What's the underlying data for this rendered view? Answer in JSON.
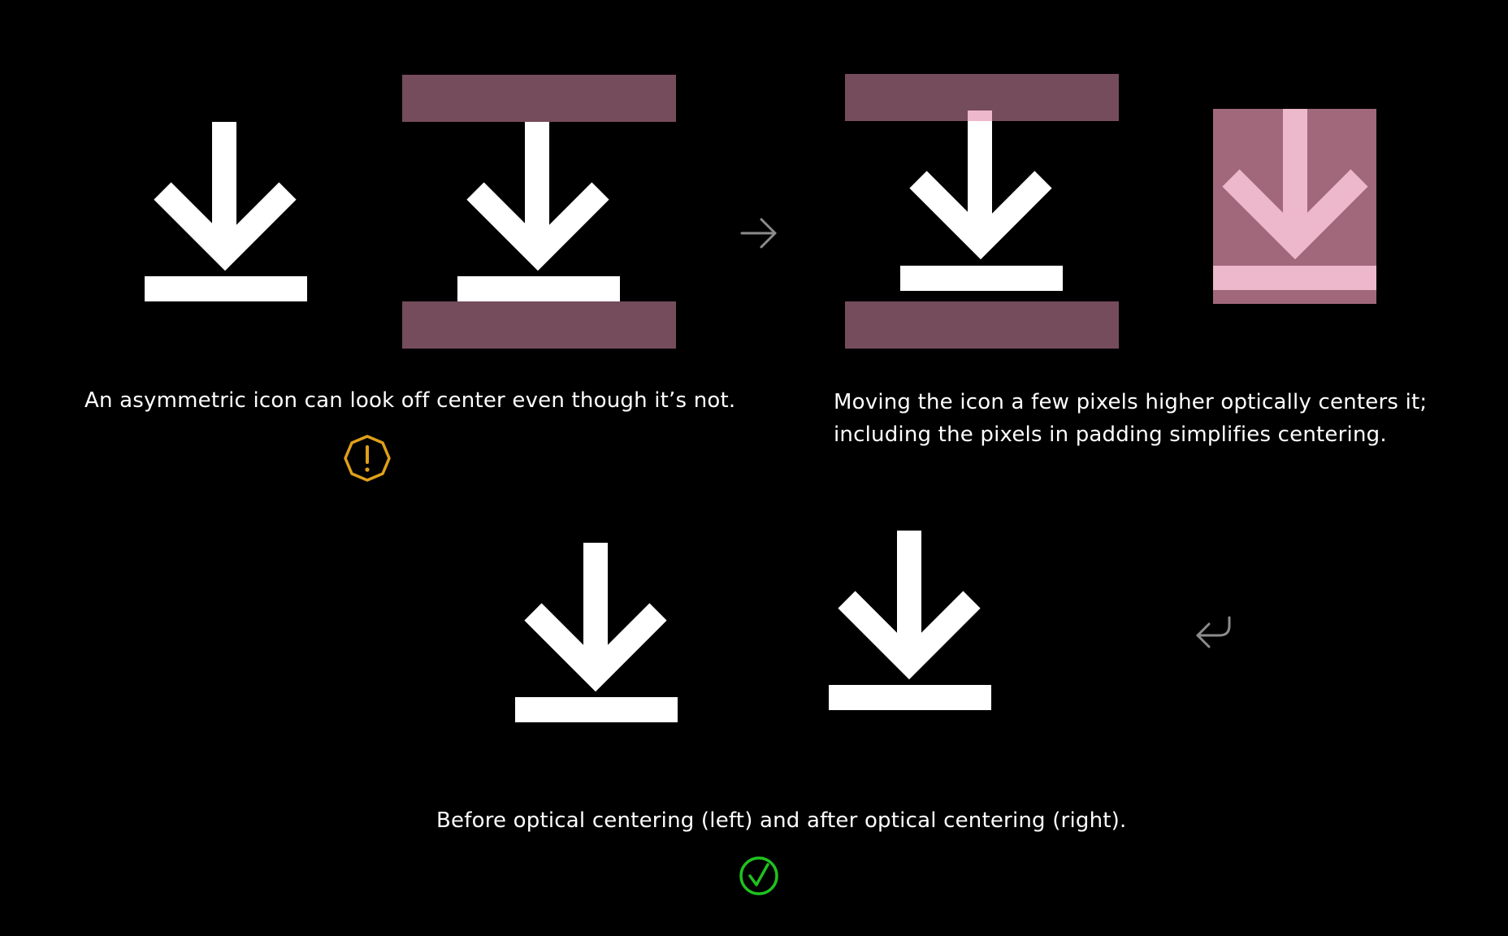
{
  "captions": {
    "top_left": "An asymmetric icon can look off center even though it’s not.",
    "top_right_line1": "Moving the icon a few pixels higher optically centers it;",
    "top_right_line2": "including the pixels in padding simplifies centering.",
    "bottom": "Before optical centering (left) and after optical centering (right)."
  },
  "icons": {
    "example_icon": "download-icon",
    "flow_right": "arrow-right-icon",
    "flow_return": "return-arrow-icon",
    "warning": "warning-octagon-icon",
    "success": "checkmark-circle-icon"
  },
  "colors": {
    "background": "#000000",
    "icon": "#ffffff",
    "padding_band": "#754c5c",
    "padding_fill": "#a1687b",
    "highlight": "#edb8cb",
    "arrow": "#8c8c8c",
    "warning": "#e0a01a",
    "success": "#1fc21f"
  }
}
